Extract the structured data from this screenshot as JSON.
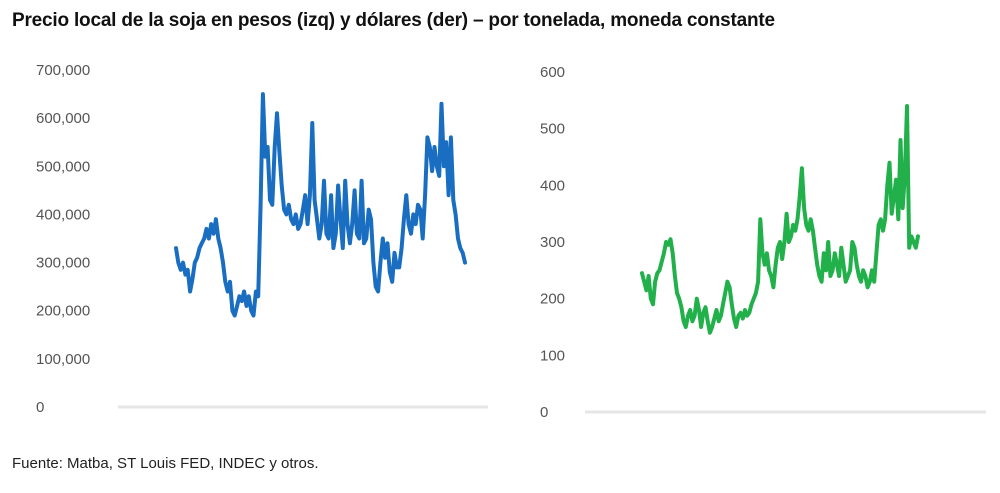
{
  "title": "Precio local de la soja en pesos (izq) y dólares (der) – por tonelada, moneda constante",
  "source": "Fuente: Matba, ST Louis FED, INDEC y otros.",
  "chart_data": [
    {
      "type": "line",
      "title": "",
      "xlabel": "",
      "ylabel": "",
      "ylim": [
        0,
        700000
      ],
      "yticks": [
        0,
        100000,
        200000,
        300000,
        400000,
        500000,
        600000,
        700000
      ],
      "ytick_labels": [
        "0",
        "100,000",
        "200,000",
        "300,000",
        "400,000",
        "500,000",
        "600,000",
        "700,000"
      ],
      "grid": false,
      "color": "#1a6ec2",
      "series": [
        {
          "values": [
            330000,
            300000,
            285000,
            300000,
            275000,
            285000,
            240000,
            265000,
            300000,
            310000,
            330000,
            340000,
            350000,
            370000,
            350000,
            380000,
            360000,
            390000,
            350000,
            330000,
            300000,
            260000,
            240000,
            260000,
            200000,
            190000,
            210000,
            230000,
            220000,
            240000,
            210000,
            230000,
            200000,
            190000,
            240000,
            230000,
            420000,
            650000,
            520000,
            540000,
            430000,
            420000,
            540000,
            610000,
            530000,
            460000,
            410000,
            400000,
            420000,
            390000,
            380000,
            400000,
            370000,
            380000,
            410000,
            440000,
            380000,
            440000,
            590000,
            430000,
            390000,
            350000,
            380000,
            470000,
            360000,
            350000,
            440000,
            330000,
            360000,
            460000,
            390000,
            330000,
            470000,
            380000,
            340000,
            380000,
            450000,
            360000,
            350000,
            470000,
            340000,
            350000,
            410000,
            390000,
            300000,
            250000,
            240000,
            300000,
            350000,
            310000,
            340000,
            280000,
            260000,
            320000,
            290000,
            290000,
            330000,
            390000,
            440000,
            380000,
            360000,
            400000,
            380000,
            420000,
            410000,
            350000,
            440000,
            560000,
            540000,
            490000,
            540000,
            500000,
            480000,
            630000,
            500000,
            550000,
            440000,
            560000,
            430000,
            400000,
            350000,
            330000,
            320000,
            300000
          ]
        }
      ]
    },
    {
      "type": "line",
      "title": "",
      "xlabel": "",
      "ylabel": "",
      "ylim": [
        0,
        600
      ],
      "yticks": [
        0,
        100,
        200,
        300,
        400,
        500,
        600
      ],
      "ytick_labels": [
        "0",
        "100",
        "200",
        "300",
        "400",
        "500",
        "600"
      ],
      "grid": false,
      "color": "#22b04b",
      "series": [
        {
          "values": [
            245,
            230,
            215,
            240,
            200,
            190,
            230,
            245,
            250,
            265,
            280,
            300,
            295,
            305,
            280,
            240,
            210,
            200,
            185,
            160,
            150,
            170,
            180,
            160,
            170,
            200,
            180,
            150,
            175,
            185,
            160,
            140,
            150,
            165,
            180,
            160,
            170,
            190,
            210,
            230,
            220,
            190,
            165,
            150,
            170,
            175,
            165,
            180,
            170,
            175,
            190,
            200,
            210,
            230,
            340,
            280,
            260,
            280,
            250,
            240,
            220,
            260,
            290,
            300,
            270,
            300,
            350,
            300,
            310,
            330,
            320,
            340,
            380,
            430,
            360,
            330,
            320,
            340,
            320,
            290,
            260,
            240,
            230,
            280,
            250,
            300,
            240,
            250,
            280,
            260,
            240,
            290,
            260,
            230,
            240,
            250,
            300,
            290,
            260,
            240,
            230,
            250,
            240,
            220,
            230,
            250,
            230,
            280,
            330,
            340,
            320,
            340,
            400,
            440,
            350,
            380,
            410,
            340,
            480,
            360,
            420,
            540,
            290,
            310,
            300,
            290,
            310
          ]
        }
      ]
    }
  ]
}
